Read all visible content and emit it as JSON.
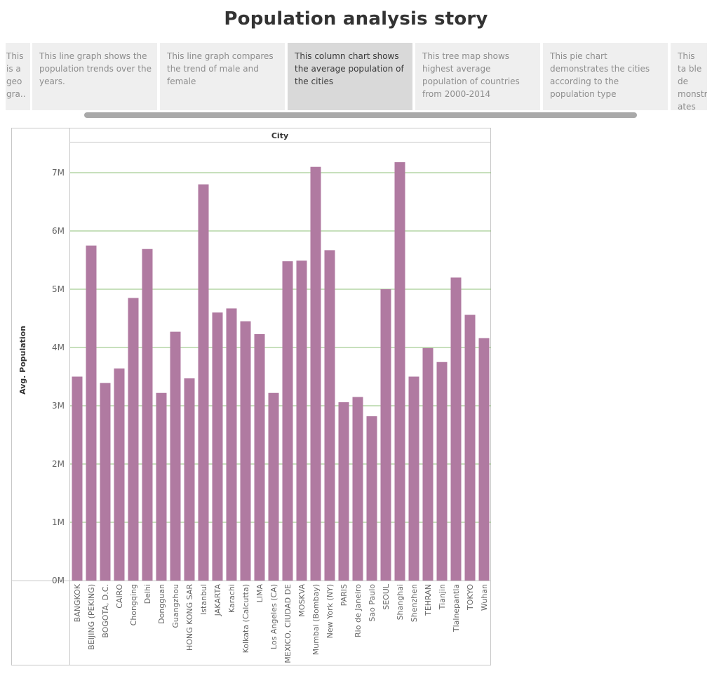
{
  "story": {
    "title": "Population analysis story",
    "points": [
      {
        "text": "This is a geo gra.."
      },
      {
        "text": "This line graph shows the population trends over the years."
      },
      {
        "text": "This line graph compares the trend of male and female"
      },
      {
        "text": "This column chart shows the average population of the cities"
      },
      {
        "text": "This tree map shows highest average population of countries from 2000-2014"
      },
      {
        "text": "This pie chart demonstrates the cities according to the population type"
      },
      {
        "text": "This ta ble de monstr ates p.."
      }
    ],
    "active_point": 3
  },
  "chart_data": {
    "type": "bar",
    "column_header": "City",
    "ylabel": "Avg. Population",
    "ylim": [
      0,
      7500000
    ],
    "yticks": [
      {
        "value": 0,
        "label": "0M"
      },
      {
        "value": 1000000,
        "label": "1M"
      },
      {
        "value": 2000000,
        "label": "2M"
      },
      {
        "value": 3000000,
        "label": "3M"
      },
      {
        "value": 4000000,
        "label": "4M"
      },
      {
        "value": 5000000,
        "label": "5M"
      },
      {
        "value": 6000000,
        "label": "6M"
      },
      {
        "value": 7000000,
        "label": "7M"
      }
    ],
    "grid": true,
    "bar_color": "#b07aa1",
    "grid_color": "#8fc27a",
    "categories": [
      "BANGKOK",
      "BEIJING (PEKING)",
      "BOGOTA, D.C.",
      "CAIRO",
      "Chongqing",
      "Delhi",
      "Dongguan",
      "Guangzhou",
      "HONG KONG SAR",
      "Istanbul",
      "JAKARTA",
      "Karachi",
      "Kolkata (Calcutta)",
      "LIMA",
      "Los Angeles (CA)",
      "MEXICO, CIUDAD DE",
      "MOSKVA",
      "Mumbai (Bombay)",
      "New York (NY)",
      "PARIS",
      "Rio de Janeiro",
      "Sao Paulo",
      "SEOUL",
      "Shanghai",
      "Shenzhen",
      "TEHRAN",
      "Tianjin",
      "Tlalnepantla",
      "TOKYO",
      "Wuhan"
    ],
    "values": [
      3500000,
      5750000,
      3390000,
      3640000,
      4850000,
      5690000,
      3220000,
      4270000,
      3470000,
      6800000,
      4600000,
      4670000,
      4450000,
      4230000,
      3220000,
      5480000,
      5490000,
      7100000,
      5670000,
      3060000,
      3150000,
      2820000,
      5000000,
      7180000,
      3500000,
      3990000,
      3750000,
      5200000,
      4560000,
      4160000
    ]
  }
}
